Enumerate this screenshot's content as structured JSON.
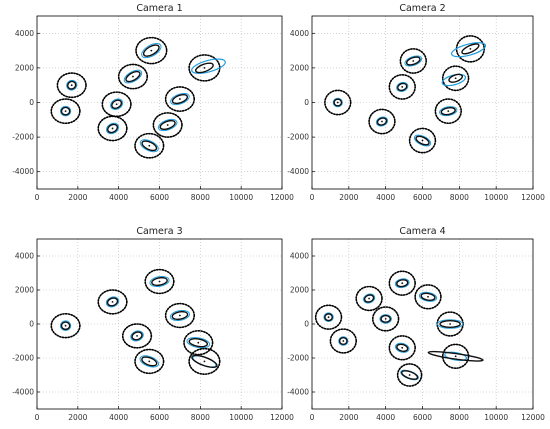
{
  "colors": {
    "true": "#1e9de0",
    "estimate": "#111111",
    "uncertainty": "#000000",
    "grid": "#b8b8b8"
  },
  "chart_data": [
    {
      "type": "scatter",
      "title": "Camera 1",
      "xlim": [
        0,
        12000
      ],
      "ylim": [
        -5000,
        5000
      ],
      "xticks": [
        0,
        2000,
        4000,
        6000,
        8000,
        10000,
        12000
      ],
      "yticks": [
        -4000,
        -2000,
        0,
        2000,
        4000
      ],
      "grid": true,
      "points": [
        {
          "x": 1700,
          "y": 1000,
          "rx": 200,
          "ry": 180,
          "angle": 30,
          "er": 700
        },
        {
          "x": 1400,
          "y": -500,
          "rx": 200,
          "ry": 180,
          "angle": 0,
          "er": 700
        },
        {
          "x": 3900,
          "y": -100,
          "rx": 250,
          "ry": 180,
          "angle": 30,
          "er": 700
        },
        {
          "x": 3700,
          "y": -1500,
          "rx": 250,
          "ry": 180,
          "angle": 30,
          "er": 700
        },
        {
          "x": 4700,
          "y": 1500,
          "rx": 380,
          "ry": 180,
          "angle": 30,
          "er": 700
        },
        {
          "x": 5600,
          "y": 3000,
          "rx": 420,
          "ry": 200,
          "angle": 30,
          "er": 750
        },
        {
          "x": 5500,
          "y": -2500,
          "rx": 380,
          "ry": 180,
          "angle": -25,
          "er": 700
        },
        {
          "x": 7000,
          "y": 200,
          "rx": 380,
          "ry": 180,
          "angle": 20,
          "er": 700
        },
        {
          "x": 6400,
          "y": -1300,
          "rx": 380,
          "ry": 180,
          "angle": 20,
          "er": 700
        },
        {
          "x": 8200,
          "y": 2000,
          "rx": 450,
          "ry": 180,
          "angle": 20,
          "er": 750,
          "true": {
            "x": 8400,
            "y": 2100,
            "rx": 850,
            "ry": 280,
            "angle": 15
          }
        }
      ]
    },
    {
      "type": "scatter",
      "title": "Camera 2",
      "xlim": [
        0,
        12000
      ],
      "ylim": [
        -5000,
        5000
      ],
      "xticks": [
        0,
        2000,
        4000,
        6000,
        8000,
        10000,
        12000
      ],
      "yticks": [
        -4000,
        -2000,
        0,
        2000,
        4000
      ],
      "grid": true,
      "points": [
        {
          "x": 1400,
          "y": 0,
          "rx": 200,
          "ry": 180,
          "angle": 0,
          "er": 700
        },
        {
          "x": 3800,
          "y": -1100,
          "rx": 250,
          "ry": 180,
          "angle": 20,
          "er": 700
        },
        {
          "x": 4900,
          "y": 900,
          "rx": 250,
          "ry": 180,
          "angle": 20,
          "er": 700
        },
        {
          "x": 5500,
          "y": 2400,
          "rx": 380,
          "ry": 180,
          "angle": 20,
          "er": 700
        },
        {
          "x": 6000,
          "y": -2200,
          "rx": 380,
          "ry": 180,
          "angle": -25,
          "er": 700
        },
        {
          "x": 7400,
          "y": -500,
          "rx": 380,
          "ry": 180,
          "angle": 10,
          "er": 700
        },
        {
          "x": 7800,
          "y": 1400,
          "rx": 380,
          "ry": 180,
          "angle": 20,
          "er": 700,
          "true": {
            "x": 7700,
            "y": 1300,
            "rx": 650,
            "ry": 260,
            "angle": 15
          }
        },
        {
          "x": 8600,
          "y": 3100,
          "rx": 500,
          "ry": 180,
          "angle": 25,
          "er": 750,
          "true": {
            "x": 8500,
            "y": 3050,
            "rx": 950,
            "ry": 300,
            "angle": 15
          }
        }
      ]
    },
    {
      "type": "scatter",
      "title": "Camera 3",
      "xlim": [
        0,
        12000
      ],
      "ylim": [
        -5000,
        5000
      ],
      "xticks": [
        0,
        2000,
        4000,
        6000,
        8000,
        10000,
        12000
      ],
      "yticks": [
        -4000,
        -2000,
        0,
        2000,
        4000
      ],
      "grid": true,
      "points": [
        {
          "x": 1400,
          "y": -100,
          "rx": 200,
          "ry": 180,
          "angle": 0,
          "er": 700
        },
        {
          "x": 3700,
          "y": 1300,
          "rx": 250,
          "ry": 180,
          "angle": 20,
          "er": 700
        },
        {
          "x": 4900,
          "y": -700,
          "rx": 250,
          "ry": 180,
          "angle": 20,
          "er": 700
        },
        {
          "x": 5500,
          "y": -2200,
          "rx": 380,
          "ry": 180,
          "angle": -20,
          "er": 700
        },
        {
          "x": 6000,
          "y": 2500,
          "rx": 380,
          "ry": 180,
          "angle": 10,
          "er": 700
        },
        {
          "x": 7000,
          "y": 500,
          "rx": 380,
          "ry": 180,
          "angle": 10,
          "er": 700
        },
        {
          "x": 7900,
          "y": -1100,
          "rx": 450,
          "ry": 180,
          "angle": -10,
          "er": 700
        },
        {
          "x": 8200,
          "y": -2200,
          "rx": 650,
          "ry": 200,
          "angle": -20,
          "er": 750,
          "true": {
            "x": 8200,
            "y": -2200,
            "rx": 600,
            "ry": 200,
            "angle": -20
          }
        }
      ]
    },
    {
      "type": "scatter",
      "title": "Camera 4",
      "xlim": [
        0,
        12000
      ],
      "ylim": [
        -5000,
        5000
      ],
      "xticks": [
        0,
        2000,
        4000,
        6000,
        8000,
        10000,
        12000
      ],
      "yticks": [
        -4000,
        -2000,
        0,
        2000,
        4000
      ],
      "grid": true,
      "points": [
        {
          "x": 900,
          "y": 400,
          "rx": 200,
          "ry": 180,
          "angle": 0,
          "er": 700
        },
        {
          "x": 1700,
          "y": -1000,
          "rx": 200,
          "ry": 180,
          "angle": 0,
          "er": 700
        },
        {
          "x": 3100,
          "y": 1500,
          "rx": 250,
          "ry": 180,
          "angle": 20,
          "er": 700
        },
        {
          "x": 4000,
          "y": 300,
          "rx": 250,
          "ry": 180,
          "angle": 0,
          "er": 700
        },
        {
          "x": 4900,
          "y": -1400,
          "rx": 300,
          "ry": 180,
          "angle": -15,
          "er": 700
        },
        {
          "x": 4900,
          "y": 2400,
          "rx": 300,
          "ry": 180,
          "angle": 10,
          "er": 700
        },
        {
          "x": 6300,
          "y": 1600,
          "rx": 380,
          "ry": 180,
          "angle": -10,
          "er": 700
        },
        {
          "x": 5300,
          "y": -3000,
          "rx": 450,
          "ry": 180,
          "angle": -20,
          "er": 650,
          "true": {
            "x": 5300,
            "y": -3000,
            "rx": 500,
            "ry": 200,
            "angle": -20
          }
        },
        {
          "x": 7500,
          "y": 0,
          "rx": 550,
          "ry": 180,
          "angle": 0,
          "er": 700
        },
        {
          "x": 7800,
          "y": -1900,
          "rx": 1500,
          "ry": 150,
          "angle": -8,
          "er": 700,
          "true": {
            "x": 7800,
            "y": -1900,
            "rx": 600,
            "ry": 200,
            "angle": -10
          }
        }
      ]
    }
  ]
}
